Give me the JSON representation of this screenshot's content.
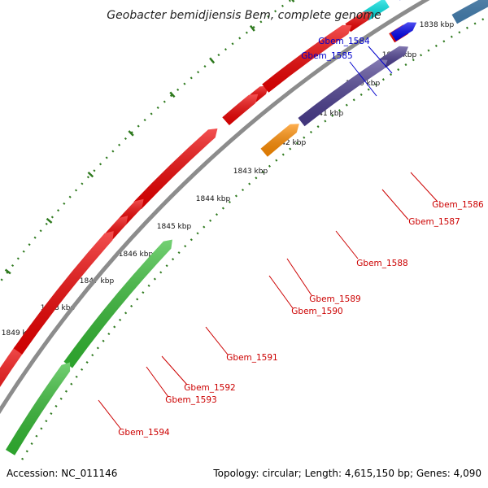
{
  "title": "Geobacter bemidjiensis Bem, complete genome",
  "footer": {
    "accession": "Accession: NC_011146",
    "summary": "Topology: circular; Length: 4,615,150 bp; Genes: 4,090"
  },
  "colors": {
    "backbone": "#8c8c8c",
    "tick_outer": "#2f7a1f",
    "tick_inner": "#2f7a1f",
    "label_forward": "#0000cc",
    "label_reverse": "#cc0000",
    "leader_forward": "#0000cc",
    "leader_reverse": "#cc0000"
  },
  "ticks": [
    {
      "label": "1838 kbp",
      "tilt": 0
    },
    {
      "label": "1839 kbp",
      "tilt": 0
    },
    {
      "label": "1840 kbp",
      "tilt": 0
    },
    {
      "label": "1841 kbp",
      "tilt": 0
    },
    {
      "label": "1842 kbp",
      "tilt": 0
    },
    {
      "label": "1843 kbp",
      "tilt": 0
    },
    {
      "label": "1844 kbp",
      "tilt": 0
    },
    {
      "label": "1845 kbp",
      "tilt": 0
    },
    {
      "label": "1846 kbp",
      "tilt": 0
    },
    {
      "label": "1847 kbp",
      "tilt": 0
    },
    {
      "label": "1848 kbp",
      "tilt": 0
    },
    {
      "label": "1849 kbp",
      "tilt": 0
    }
  ],
  "genes": [
    {
      "name": "Gbem_1584",
      "color": "#0000ee",
      "label_color": "#0000cc"
    },
    {
      "name": "Gbem_1585",
      "color": "#00e5e5",
      "label_color": "#0000cc"
    },
    {
      "name": "Gbem_1586",
      "color": "#ee0000",
      "label_color": "#cc0000"
    },
    {
      "name": "Gbem_1587",
      "color": "#4b3d8f",
      "label_color": "#cc0000"
    },
    {
      "name": "Gbem_1588",
      "color": "#4b3d8f",
      "label_color": "#cc0000"
    },
    {
      "name": "Gbem_1589",
      "color": "#ee0000",
      "label_color": "#cc0000"
    },
    {
      "name": "Gbem_1590",
      "color": "#ff8c00",
      "label_color": "#cc0000"
    },
    {
      "name": "Gbem_1591",
      "color": "#ee0000",
      "label_color": "#cc0000"
    },
    {
      "name": "Gbem_1592",
      "color": "#ee0000",
      "label_color": "#cc0000"
    },
    {
      "name": "Gbem_1593",
      "color": "#ee0000",
      "label_color": "#cc0000"
    },
    {
      "name": "Gbem_1594",
      "color": "#33bb33",
      "label_color": "#cc0000"
    }
  ],
  "unlabeled_features": [
    {
      "color": "#ee0000"
    },
    {
      "color": "#4682b4"
    },
    {
      "color": "#ee0000"
    },
    {
      "color": "#ee0000"
    },
    {
      "color": "#ee0000"
    },
    {
      "color": "#ee0000"
    },
    {
      "color": "#0000ee"
    },
    {
      "color": "#ee0000"
    },
    {
      "color": "#33bb33"
    }
  ]
}
